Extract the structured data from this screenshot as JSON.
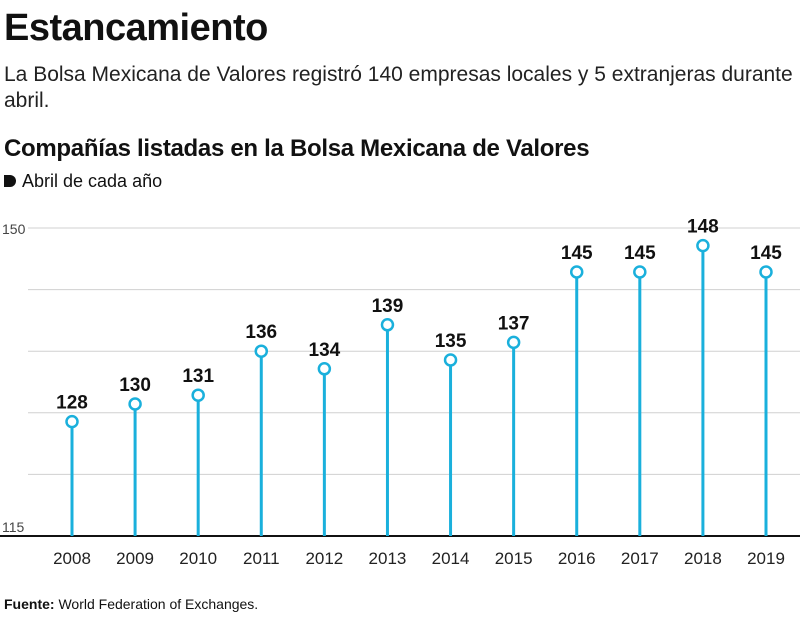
{
  "headline": "Estancamiento",
  "dek": "La Bolsa Mexicana de Valores registró 140 empresas locales y 5 extranjeras durante abril.",
  "source_label": "Fuente:",
  "source_text": "World Federation of Exchanges.",
  "colors": {
    "stem": "#1ab0dc",
    "grid": "#d0d0d0",
    "axis": "#111111",
    "text": "#111111"
  },
  "chart_data": {
    "type": "lollipop",
    "title": "Compañías listadas en la Bolsa Mexicana de Valores",
    "subtitle": "Abril de cada año",
    "categories": [
      "2008",
      "2009",
      "2010",
      "2011",
      "2012",
      "2013",
      "2014",
      "2015",
      "2016",
      "2017",
      "2018",
      "2019"
    ],
    "values": [
      128,
      130,
      131,
      136,
      134,
      139,
      135,
      137,
      145,
      145,
      148,
      145
    ],
    "ylim": [
      115,
      150
    ],
    "yticks": [
      115,
      150
    ],
    "grid": true
  }
}
